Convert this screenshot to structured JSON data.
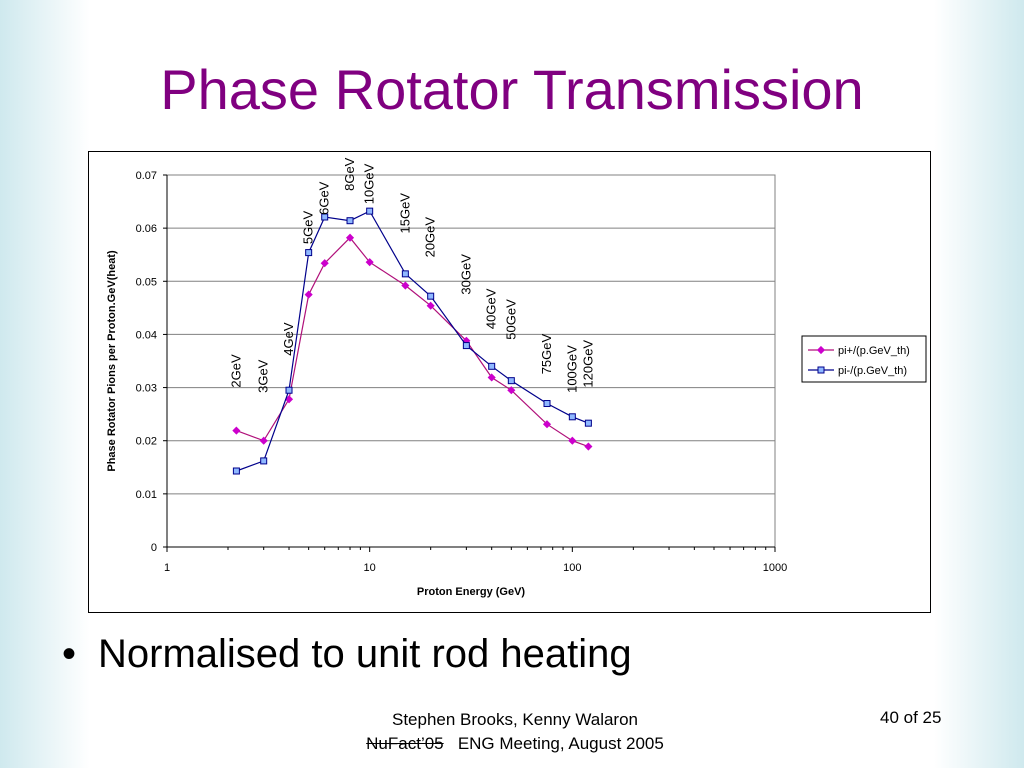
{
  "slide": {
    "title": "Phase Rotator Transmission",
    "bullet": "Normalised to unit rod heating",
    "footer_line1": "Stephen Brooks, Kenny Walaron",
    "footer_struck": "NuFact’05",
    "footer_line2_rest": "ENG Meeting, August 2005",
    "page_number": "40 of 25"
  },
  "colors": {
    "title": "#800080",
    "series1": "#cc00cc",
    "series1_line": "#b0107a",
    "series2": "#00008b",
    "series2_fill": "#8fb8ff"
  },
  "chart_data": {
    "type": "line",
    "title": "",
    "xlabel": "Proton Energy (GeV)",
    "ylabel": "Phase Rotator Pions per Proton.GeV(heat)",
    "x_scale": "log",
    "xlim": [
      1,
      1000
    ],
    "ylim": [
      0,
      0.07
    ],
    "x_ticks": [
      "1",
      "10",
      "100",
      "1000"
    ],
    "y_ticks": [
      "0",
      "0.01",
      "0.02",
      "0.03",
      "0.04",
      "0.05",
      "0.06",
      "0.07"
    ],
    "y_tick_values": [
      0,
      0.01,
      0.02,
      0.03,
      0.04,
      0.05,
      0.06,
      0.07
    ],
    "x_tick_values": [
      1,
      10,
      100,
      1000
    ],
    "grid": "horizontal",
    "legend_position": "right",
    "x": [
      2.2,
      3,
      4,
      5,
      6,
      8,
      10,
      15,
      20,
      30,
      40,
      50,
      75,
      100,
      120
    ],
    "series": [
      {
        "name": "pi+/(p.GeV_th)",
        "marker": "diamond",
        "values": [
          0.0219,
          0.02,
          0.0278,
          0.0475,
          0.0534,
          0.0582,
          0.0536,
          0.0492,
          0.0454,
          0.0388,
          0.0319,
          0.0295,
          0.0231,
          0.02,
          0.0189
        ]
      },
      {
        "name": "pi-/(p.GeV_th)",
        "marker": "square",
        "values": [
          0.0143,
          0.0162,
          0.0295,
          0.0554,
          0.0621,
          0.0614,
          0.0632,
          0.0514,
          0.0472,
          0.0379,
          0.034,
          0.0313,
          0.027,
          0.0245,
          0.0233
        ]
      }
    ],
    "annotations": [
      {
        "text": "2GeV",
        "x": 2.2,
        "y": 0.03
      },
      {
        "text": "3GeV",
        "x": 3,
        "y": 0.029
      },
      {
        "text": "4GeV",
        "x": 4,
        "y": 0.036
      },
      {
        "text": "5GeV",
        "x": 5,
        "y": 0.057
      },
      {
        "text": "6GeV",
        "x": 6,
        "y": 0.0625
      },
      {
        "text": "8GeV",
        "x": 8,
        "y": 0.067
      },
      {
        "text": "10GeV",
        "x": 10,
        "y": 0.0645
      },
      {
        "text": "15GeV",
        "x": 15,
        "y": 0.059
      },
      {
        "text": "20GeV",
        "x": 20,
        "y": 0.0545
      },
      {
        "text": "30GeV",
        "x": 30,
        "y": 0.0475
      },
      {
        "text": "40GeV",
        "x": 40,
        "y": 0.041
      },
      {
        "text": "50GeV",
        "x": 50,
        "y": 0.039
      },
      {
        "text": "75GeV",
        "x": 75,
        "y": 0.0325
      },
      {
        "text": "100GeV",
        "x": 100,
        "y": 0.029
      },
      {
        "text": "120GeV",
        "x": 120,
        "y": 0.03
      }
    ]
  }
}
